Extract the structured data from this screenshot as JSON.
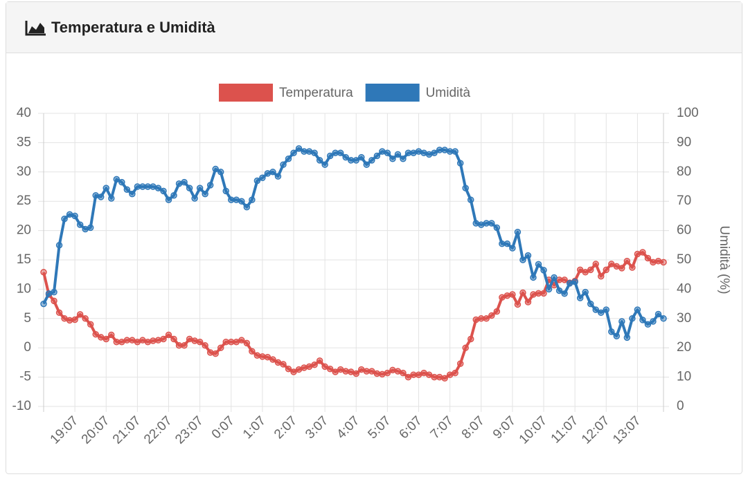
{
  "chart_data": {
    "type": "line",
    "title": "Temperatura e Umidità",
    "categories": [
      null,
      null,
      null,
      null,
      null,
      null,
      "19:07",
      null,
      null,
      null,
      null,
      null,
      "20:07",
      null,
      null,
      null,
      null,
      null,
      "21:07",
      null,
      null,
      null,
      null,
      null,
      "22:07",
      null,
      null,
      null,
      null,
      null,
      "23:07",
      null,
      null,
      null,
      null,
      null,
      "0:07",
      null,
      null,
      null,
      null,
      null,
      "1:07",
      null,
      null,
      null,
      null,
      null,
      "2:07",
      null,
      null,
      null,
      null,
      null,
      "3:07",
      null,
      null,
      null,
      null,
      null,
      "4:07",
      null,
      null,
      null,
      null,
      null,
      "5:07",
      null,
      null,
      null,
      null,
      null,
      "6:07",
      null,
      null,
      null,
      null,
      null,
      "7:07",
      null,
      null,
      null,
      null,
      null,
      "8:07",
      null,
      null,
      null,
      null,
      null,
      "9:07",
      null,
      null,
      null,
      null,
      null,
      "10:07",
      null,
      null,
      null,
      null,
      null,
      "11:07",
      null,
      null,
      null,
      null,
      null,
      "12:07",
      null,
      null,
      null,
      null,
      null,
      "13:07",
      null,
      null,
      null,
      null,
      null
    ],
    "series": [
      {
        "name": "Temperatura",
        "color": "#dc524d",
        "values": [
          12.9,
          9.1,
          8,
          6,
          5,
          4.7,
          4.8,
          5.7,
          5,
          4,
          2.3,
          1.8,
          1.5,
          2.2,
          1,
          1,
          1.3,
          1.3,
          1,
          1.3,
          1,
          1.2,
          1.3,
          1.5,
          2.2,
          1.5,
          0.4,
          0.4,
          1.5,
          1.2,
          1,
          0.4,
          -0.8,
          -1,
          0,
          1,
          1,
          1,
          1.3,
          0.8,
          -0.6,
          -1.3,
          -1.5,
          -1.6,
          -2,
          -2.5,
          -2.8,
          -3.6,
          -4.1,
          -3.7,
          -3.4,
          -3.2,
          -2.9,
          -2.2,
          -3.2,
          -3.6,
          -4.1,
          -3.7,
          -4,
          -4.1,
          -4.4,
          -3.7,
          -4,
          -4,
          -4.4,
          -4.5,
          -4.3,
          -3.8,
          -4,
          -4.3,
          -5,
          -4.6,
          -4.6,
          -4.3,
          -4.6,
          -5,
          -5,
          -5.2,
          -4.6,
          -4.3,
          -2.7,
          0,
          1.5,
          4.8,
          5,
          5,
          5.5,
          6.2,
          8.6,
          8.9,
          9.1,
          7.4,
          9.4,
          7.8,
          9.1,
          9.3,
          9.3,
          11.6,
          10.7,
          11.6,
          11.6,
          11.1,
          11.4,
          13.3,
          12.9,
          13.3,
          14.3,
          12.2,
          13.3,
          14.3,
          13.9,
          13.6,
          14.8,
          13.7,
          16,
          16.3,
          15.3,
          14.6,
          14.8,
          14.6
        ]
      },
      {
        "name": "Umidità",
        "color": "#2f78b8",
        "axis": "y2",
        "values": [
          35,
          38.5,
          39,
          55,
          64,
          65.5,
          65,
          62,
          60.5,
          61,
          72,
          71.5,
          74.5,
          71,
          77.5,
          76.5,
          74,
          72.5,
          75,
          75,
          75,
          75,
          74.5,
          73.5,
          70.5,
          72,
          76,
          76.5,
          74.5,
          71,
          74.5,
          72.5,
          75.5,
          81,
          80,
          73.5,
          70.5,
          70.5,
          70,
          68,
          70.5,
          77,
          78,
          79.5,
          80,
          78.5,
          82.5,
          84.5,
          86.5,
          88,
          87,
          87,
          86.5,
          84,
          82.5,
          85.5,
          86.5,
          86.5,
          85,
          84,
          84,
          85,
          82.5,
          84,
          85.5,
          87,
          86.5,
          84.5,
          86,
          84.5,
          86.5,
          86.5,
          87,
          86.5,
          86,
          86.5,
          87.5,
          87.5,
          87,
          87,
          83,
          74.5,
          70.5,
          62.5,
          62,
          62.5,
          62.5,
          61,
          55.5,
          55.5,
          54,
          59.5,
          50,
          51.5,
          44,
          48.5,
          46.5,
          40,
          44,
          39.5,
          38.5,
          42,
          42.5,
          37,
          39,
          35,
          33,
          32,
          33,
          25.5,
          24,
          29,
          23.5,
          30,
          33,
          29.5,
          28,
          29,
          31.5,
          30
        ]
      }
    ],
    "ylim": [
      -10,
      40
    ],
    "yticks": [
      -10,
      -5,
      0,
      5,
      10,
      15,
      20,
      25,
      30,
      35,
      40
    ],
    "y2lim": [
      0,
      100
    ],
    "y2ticks": [
      0,
      10,
      20,
      30,
      40,
      50,
      60,
      70,
      80,
      90,
      100
    ],
    "y2label": "Umidità (%)",
    "grid": true,
    "legend": "top"
  }
}
